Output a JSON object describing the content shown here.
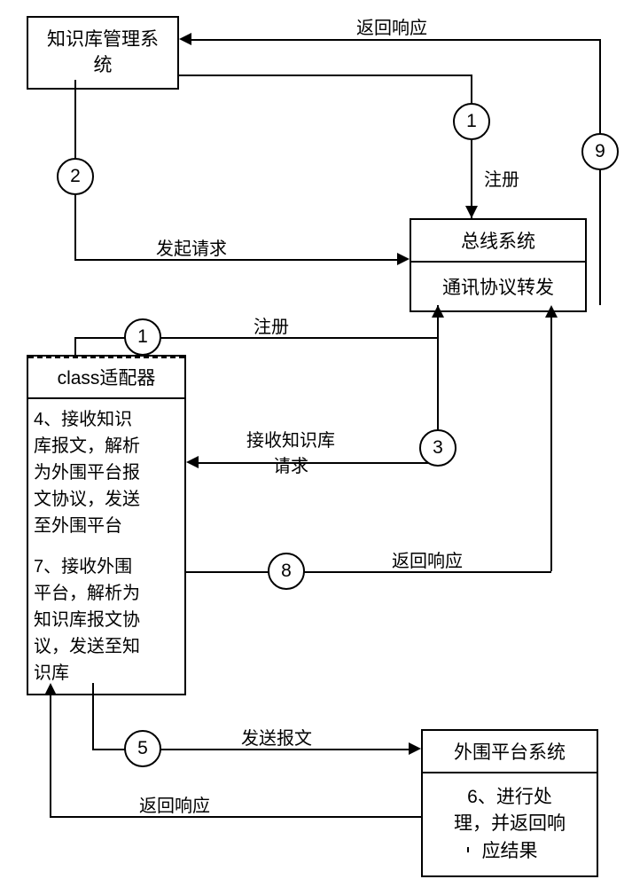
{
  "boxes": {
    "knowledge_system": "知识库管理系\n统",
    "bus_system_header": "总线系统",
    "bus_system_content": "通讯协议转发",
    "adapter_header": "class适配器",
    "adapter_step4": "4、接收知识\n库报文，解析\n为外围平台报\n文协议，发送\n至外围平台",
    "adapter_step7": "7、接收外围\n平台，解析为\n知识库报文协\n议，发送至知\n识库",
    "platform_header": "外围平台系统",
    "platform_step6": "6、进行处\n理，并返回响\n应结果"
  },
  "circles": {
    "c1a": "1",
    "c2": "2",
    "c9": "9",
    "c1b": "1",
    "c3": "3",
    "c8": "8",
    "c5": "5"
  },
  "edge_labels": {
    "return_response_top": "返回响应",
    "register_top": "注册",
    "request": "发起请求",
    "register_mid": "注册",
    "receive_kb_request": "接收知识库\n请求",
    "return_response_mid": "返回响应",
    "send_message": "发送报文",
    "return_response_bottom": "返回响应"
  }
}
